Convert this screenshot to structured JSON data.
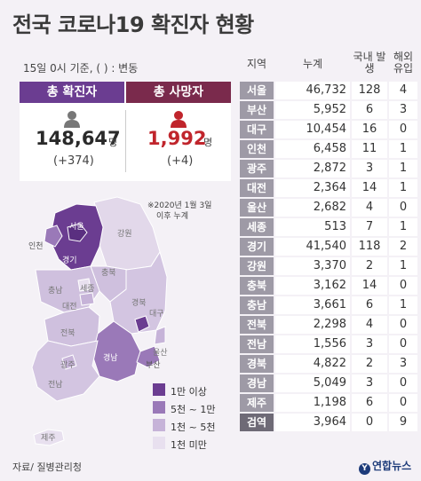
{
  "title": "전국 코로나19 확진자 현황",
  "subtitle": "15일 0시 기준, ( ) : 변동",
  "summary": {
    "confirmed": {
      "label": "총 확진자",
      "value": "148,647",
      "unit": "명",
      "change": "(+374)"
    },
    "deaths": {
      "label": "총 사망자",
      "value": "1,992",
      "unit": "명",
      "change": "(+4)"
    }
  },
  "note": [
    "※2020년 1월 3일",
    "이후 누계"
  ],
  "legend": [
    {
      "label": "1만 이상",
      "color": "#6b3d91"
    },
    {
      "label": "5천 ~ 1만",
      "color": "#9a79b8"
    },
    {
      "label": "1천 ~ 5천",
      "color": "#c6b3d8"
    },
    {
      "label": "1천 미만",
      "color": "#e8e0ef"
    }
  ],
  "map_labels": {
    "seoul": "서울",
    "incheon": "인천",
    "gyeonggi": "경기",
    "gangwon": "강원",
    "chungbuk": "충북",
    "sejong": "세종",
    "chungnam": "충남",
    "daejeon": "대전",
    "gyeongbuk": "경북",
    "daegu": "대구",
    "jeonbuk": "전북",
    "ulsan": "울산",
    "gyeongnam": "경남",
    "busan": "부산",
    "gwangju": "광주",
    "jeonnam": "전남",
    "jeju": "제주"
  },
  "colors": {
    "high": "#6b3d91",
    "mid": "#9a79b8",
    "low": "#c6b3d8",
    "min": "#e8e0ef",
    "region_cell": "#9e9aa6",
    "quarantine_cell": "#6e6a76",
    "deaths_accent": "#c0252c",
    "confirmed_head": "#6b3d91",
    "deaths_head": "#7a2a4c"
  },
  "chart_data": {
    "type": "table",
    "title": "전국 코로나19 확진자 현황",
    "columns": [
      "지역",
      "누계",
      "국내 발생",
      "해외 유입"
    ],
    "rows": [
      {
        "region": "서울",
        "cumulative": "46,732",
        "domestic": "128",
        "overseas": "4"
      },
      {
        "region": "부산",
        "cumulative": "5,952",
        "domestic": "6",
        "overseas": "3"
      },
      {
        "region": "대구",
        "cumulative": "10,454",
        "domestic": "16",
        "overseas": "0"
      },
      {
        "region": "인천",
        "cumulative": "6,458",
        "domestic": "11",
        "overseas": "1"
      },
      {
        "region": "광주",
        "cumulative": "2,872",
        "domestic": "3",
        "overseas": "1"
      },
      {
        "region": "대전",
        "cumulative": "2,364",
        "domestic": "14",
        "overseas": "1"
      },
      {
        "region": "울산",
        "cumulative": "2,682",
        "domestic": "4",
        "overseas": "0"
      },
      {
        "region": "세종",
        "cumulative": "513",
        "domestic": "7",
        "overseas": "1"
      },
      {
        "region": "경기",
        "cumulative": "41,540",
        "domestic": "118",
        "overseas": "2"
      },
      {
        "region": "강원",
        "cumulative": "3,370",
        "domestic": "2",
        "overseas": "1"
      },
      {
        "region": "충북",
        "cumulative": "3,162",
        "domestic": "14",
        "overseas": "0"
      },
      {
        "region": "충남",
        "cumulative": "3,661",
        "domestic": "6",
        "overseas": "1"
      },
      {
        "region": "전북",
        "cumulative": "2,298",
        "domestic": "4",
        "overseas": "0"
      },
      {
        "region": "전남",
        "cumulative": "1,556",
        "domestic": "3",
        "overseas": "0"
      },
      {
        "region": "경북",
        "cumulative": "4,822",
        "domestic": "2",
        "overseas": "3"
      },
      {
        "region": "경남",
        "cumulative": "5,049",
        "domestic": "3",
        "overseas": "0"
      },
      {
        "region": "제주",
        "cumulative": "1,198",
        "domestic": "6",
        "overseas": "0"
      },
      {
        "region": "검역",
        "cumulative": "3,964",
        "domestic": "0",
        "overseas": "9"
      }
    ]
  },
  "source": "자료/ 질병관리청",
  "brand": "연합뉴스",
  "brand_icon": "yonhap-logo-icon"
}
